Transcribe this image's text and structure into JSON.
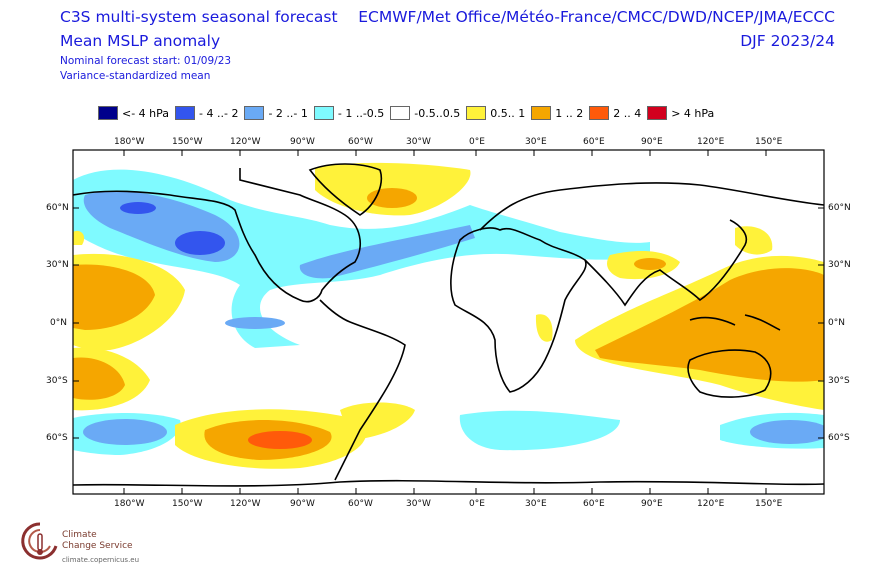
{
  "header": {
    "line1": "C3S multi-system seasonal forecast",
    "line2": "Mean MSLP anomaly",
    "line3": "Nominal forecast start: 01/09/23",
    "line4": "Variance-standardized mean",
    "systems": "ECMWF/Met Office/Météo-France/CMCC/DWD/NCEP/JMA/ECCC",
    "season": "DJF 2023/24"
  },
  "legend": [
    {
      "label": "<- 4 hPa",
      "color": "#00008b"
    },
    {
      "label": "- 4 ..- 2",
      "color": "#3355ee"
    },
    {
      "label": "- 2 ..- 1",
      "color": "#6aaaf5"
    },
    {
      "label": "- 1 ..-0.5",
      "color": "#7ffaff"
    },
    {
      "label": "-0.5..0.5",
      "color": "#ffffff"
    },
    {
      "label": "0.5.. 1",
      "color": "#fff23a"
    },
    {
      "label": "1 .. 2",
      "color": "#f5a600"
    },
    {
      "label": "2 .. 4",
      "color": "#ff5a0a"
    },
    {
      "label": "> 4 hPa",
      "color": "#d2001e"
    }
  ],
  "lon_labels": [
    "180°W",
    "150°W",
    "120°W",
    "90°W",
    "60°W",
    "30°W",
    "0°E",
    "30°E",
    "60°E",
    "90°E",
    "120°E",
    "150°E"
  ],
  "lat_labels": [
    "60°N",
    "30°N",
    "0°N",
    "30°S",
    "60°S"
  ],
  "logo": {
    "name_line1": "Climate",
    "name_line2": "Change Service",
    "url": "climate.copernicus.eu"
  }
}
